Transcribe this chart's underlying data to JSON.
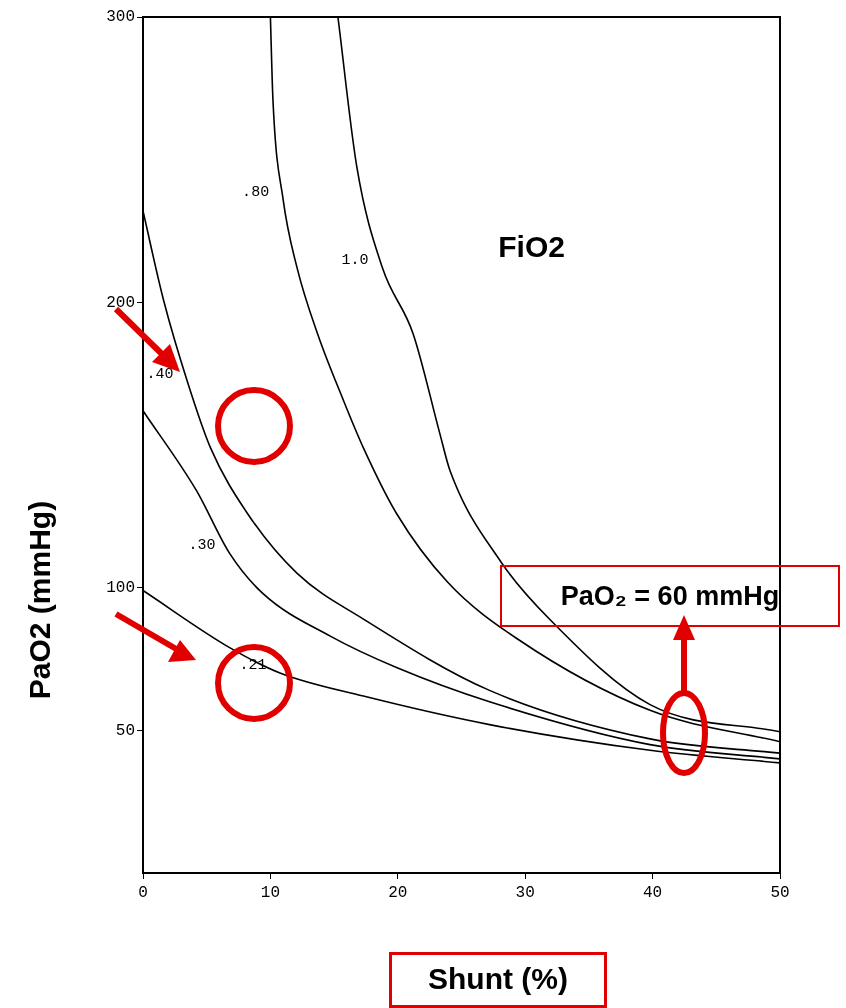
{
  "chart_data": {
    "type": "line",
    "xlabel": "Shunt (%)",
    "ylabel": "PaO2 (mmHg)",
    "legend_title": "FiO2",
    "annotations": [
      "PaO₂ = 60 mmHg"
    ],
    "xlim": [
      0,
      50
    ],
    "ylim": [
      0,
      300
    ],
    "xticks": [
      0,
      10,
      20,
      30,
      40,
      50
    ],
    "yticks": [
      50,
      100,
      200,
      300
    ],
    "grid": false,
    "marker": "none",
    "line_style": "solid",
    "series": [
      {
        "name": ".21",
        "color": "#000000",
        "x": [
          0,
          6.8,
          10.8,
          17.3,
          27.2,
          39.8,
          50
        ],
        "values": [
          99,
          79,
          70,
          62,
          52,
          43,
          38.6
        ]
      },
      {
        "name": ".30",
        "color": "#000000",
        "x": [
          0,
          4.2,
          6.8,
          9.4,
          14.7,
          19.9,
          27.2,
          39.8,
          50
        ],
        "values": [
          162,
          134,
          112,
          98,
          83,
          72,
          60,
          45,
          40
        ]
      },
      {
        "name": ".40",
        "color": "#000000",
        "x": [
          0,
          1.6,
          3.5,
          5.3,
          8.2,
          12.1,
          17.3,
          27.2,
          39.8,
          50
        ],
        "values": [
          232,
          201,
          172,
          149,
          126,
          105,
          89,
          64,
          47,
          42
        ]
      },
      {
        "name": ".80",
        "color": "#000000",
        "x": [
          10,
          10.2,
          11,
          12.1,
          13.7,
          15.7,
          17.3,
          19.9,
          23.9,
          29.4,
          39.8,
          50
        ],
        "values": [
          300,
          271,
          236,
          212,
          189,
          166,
          149,
          126,
          102,
          82,
          57,
          46
        ]
      },
      {
        "name": "1.0",
        "color": "#000000",
        "x": [
          15.3,
          16.8,
          18.8,
          21.2,
          23.3,
          24.1,
          28.1,
          31.9,
          39.8,
          50
        ],
        "values": [
          300,
          247,
          212,
          189,
          154,
          141,
          109,
          89,
          59,
          49.5
        ]
      }
    ]
  }
}
